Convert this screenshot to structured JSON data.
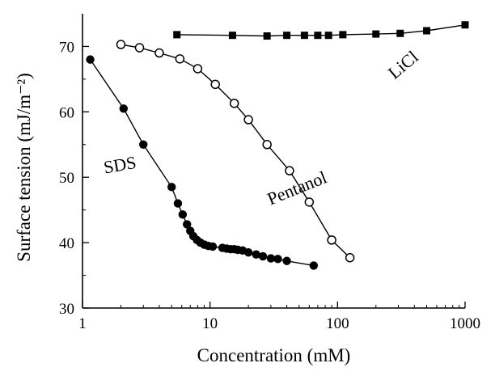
{
  "chart_data": {
    "type": "scatter",
    "xlabel": "Concentration (mM)",
    "ylabel": "Surface tension (mJ/m⁻²)",
    "xscale": "log",
    "xlim": [
      1,
      1000
    ],
    "ylim": [
      30,
      75
    ],
    "xticks": [
      1,
      10,
      100,
      1000
    ],
    "xtick_labels": [
      "1",
      "10",
      "100",
      "1000"
    ],
    "yticks": [
      30,
      40,
      50,
      60,
      70
    ],
    "ytick_labels": [
      "30",
      "40",
      "50",
      "60",
      "70"
    ],
    "grid": false,
    "series": [
      {
        "name": "SDS",
        "marker": "filled-circle",
        "color": "#000000",
        "x": [
          1.15,
          2.1,
          3.0,
          5.0,
          5.6,
          6.1,
          6.6,
          7.0,
          7.4,
          7.9,
          8.4,
          9.0,
          9.7,
          10.5,
          12.5,
          13.5,
          14.5,
          15.5,
          16.5,
          18.0,
          20.0,
          23.0,
          26.0,
          30.0,
          34.0,
          40.0,
          65.0
        ],
        "y": [
          68.0,
          60.5,
          55.0,
          48.5,
          46.0,
          44.3,
          42.8,
          41.8,
          41.0,
          40.4,
          40.0,
          39.7,
          39.5,
          39.4,
          39.2,
          39.1,
          39.0,
          39.0,
          38.9,
          38.8,
          38.5,
          38.2,
          37.9,
          37.6,
          37.5,
          37.2,
          36.5
        ]
      },
      {
        "name": "Pentanol",
        "marker": "open-circle",
        "color": "#000000",
        "x": [
          2.0,
          2.8,
          4.0,
          5.8,
          8.0,
          11.0,
          15.5,
          20.0,
          28.0,
          42.0,
          60.0,
          90.0,
          125.0
        ],
        "y": [
          70.3,
          69.8,
          69.0,
          68.1,
          66.6,
          64.2,
          61.3,
          58.8,
          55.0,
          51.0,
          46.2,
          40.4,
          37.7
        ]
      },
      {
        "name": "LiCl",
        "marker": "filled-square",
        "color": "#000000",
        "x": [
          5.5,
          15.0,
          28.0,
          40.0,
          55.0,
          70.0,
          85.0,
          110.0,
          200.0,
          310.0,
          500.0,
          1000.0
        ],
        "y": [
          71.8,
          71.7,
          71.6,
          71.7,
          71.7,
          71.7,
          71.7,
          71.8,
          71.9,
          72.0,
          72.4,
          73.3
        ]
      }
    ],
    "series_labels": [
      {
        "text": "SDS",
        "at_x": 2.0,
        "at_y": 51.0,
        "rotate": -10
      },
      {
        "text": "Pentanol",
        "at_x": 50.0,
        "at_y": 47.5,
        "rotate": -22
      },
      {
        "text": "LiCl",
        "at_x": 350.0,
        "at_y": 66.5,
        "rotate": -40
      }
    ]
  }
}
